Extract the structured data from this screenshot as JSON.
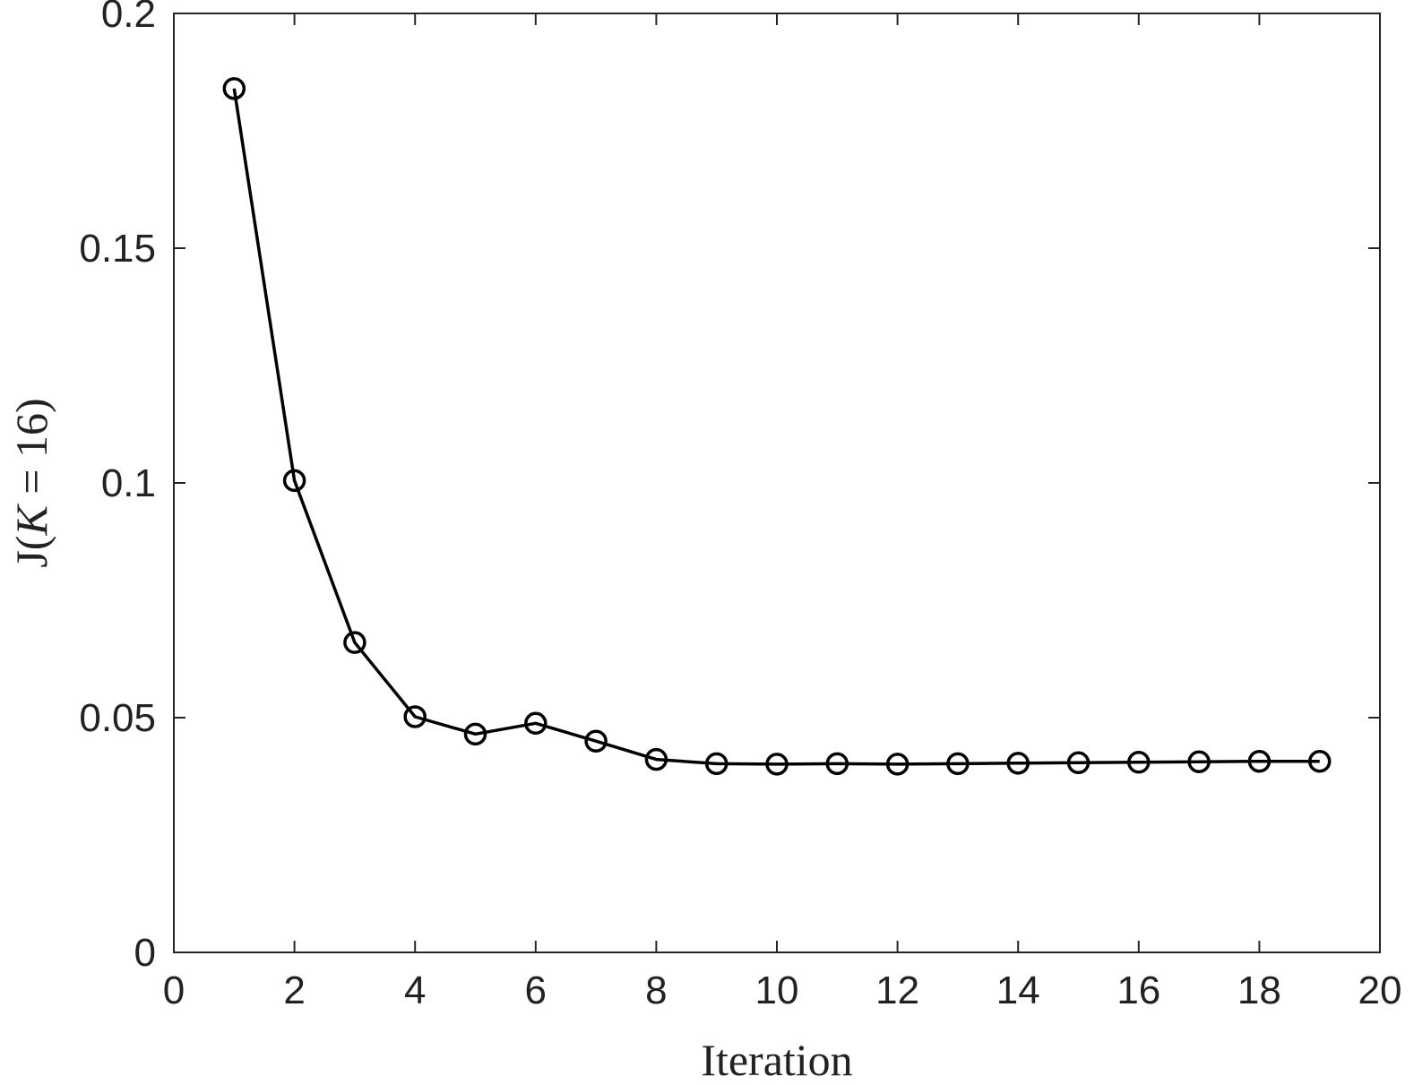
{
  "chart_data": {
    "type": "line",
    "x": [
      1,
      2,
      3,
      4,
      5,
      6,
      7,
      8,
      9,
      10,
      11,
      12,
      13,
      14,
      15,
      16,
      17,
      18,
      19
    ],
    "series": [
      {
        "values": [
          0.184,
          0.1005,
          0.066,
          0.0502,
          0.0465,
          0.0488,
          0.045,
          0.0411,
          0.0402,
          0.0401,
          0.0402,
          0.0401,
          0.0402,
          0.0403,
          0.0404,
          0.0405,
          0.0406,
          0.0407,
          0.0407
        ],
        "color": "#000000",
        "marker": "circle"
      }
    ],
    "xlabel": "Iteration",
    "ylabel": {
      "prefix": "J(",
      "variable": "K",
      "suffix": " = 16)"
    },
    "xlim": [
      0,
      20
    ],
    "ylim": [
      0,
      0.2
    ],
    "xticks": [
      "0",
      "2",
      "4",
      "6",
      "8",
      "10",
      "12",
      "14",
      "16",
      "18",
      "20"
    ],
    "yticks": [
      "0",
      "0.05",
      "0.1",
      "0.15",
      "0.2"
    ],
    "grid": false,
    "box": true
  }
}
